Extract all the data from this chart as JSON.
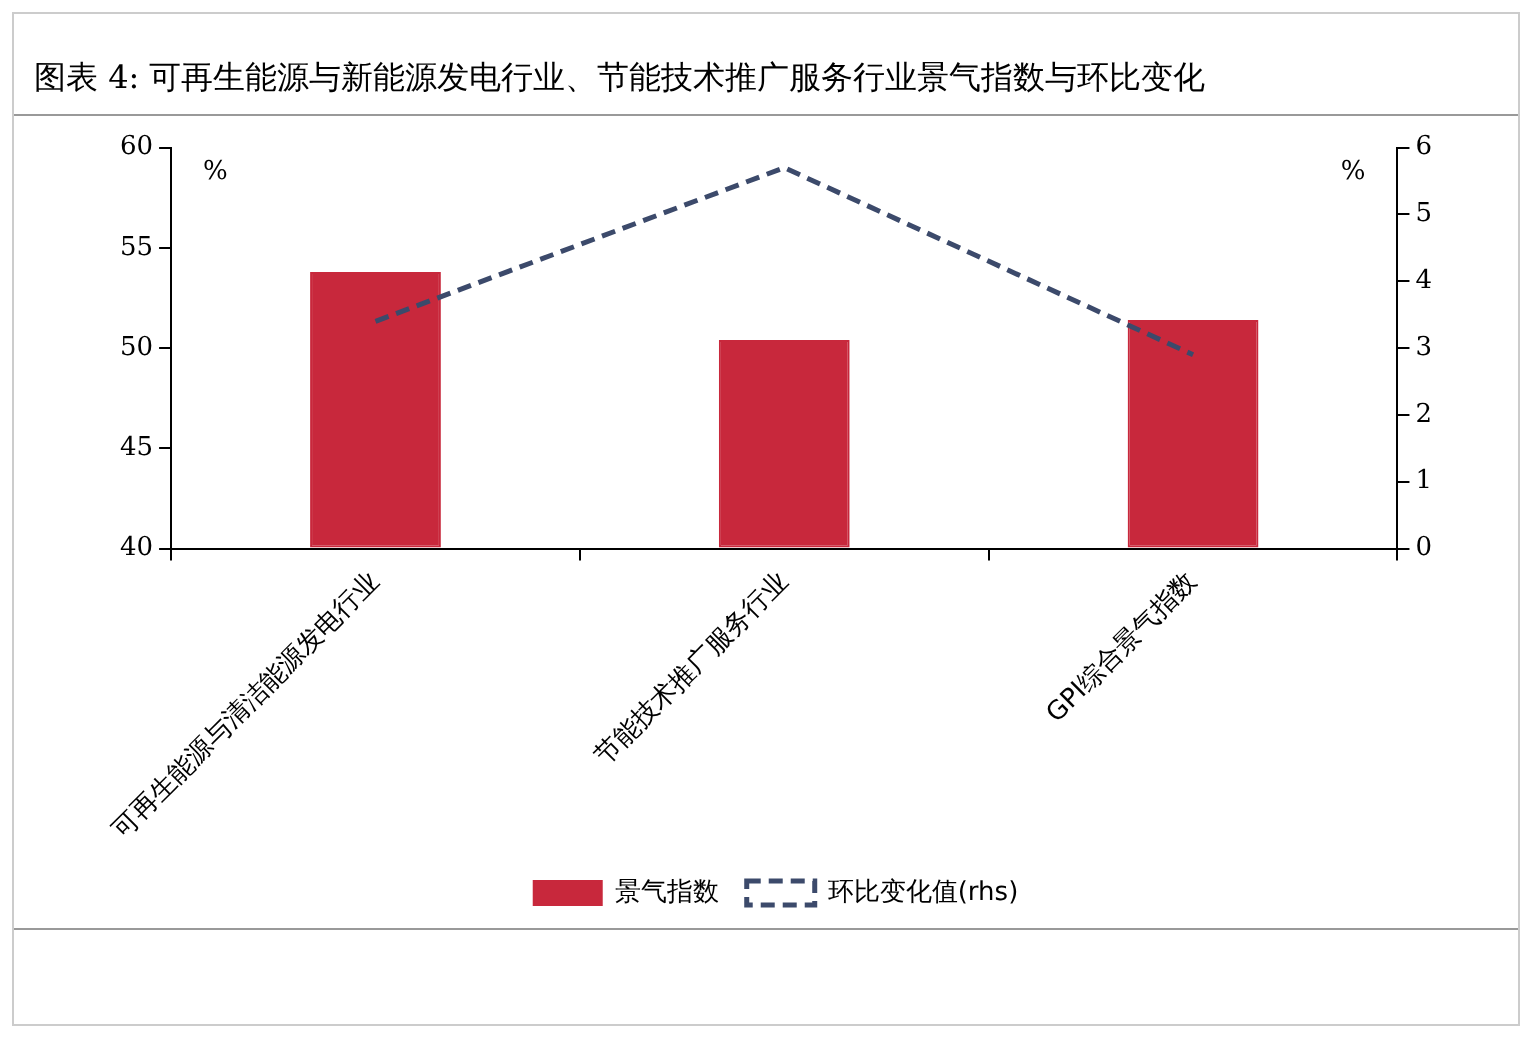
{
  "chart_data": {
    "type": "bar",
    "title": "图表 4: 可再生能源与新能源发电行业、节能技术推广服务行业景气指数与环比变化",
    "ylabel": "%",
    "y2label": "%",
    "categories": [
      "可再生能源与清洁能源发电行业",
      "节能技术推广服务行业",
      "GPI综合景气指数"
    ],
    "series": [
      {
        "name": "景气指数",
        "color": "#c8283c",
        "values": [
          53.8,
          50.4,
          51.4
        ]
      },
      {
        "name": "环比变化值(rhs)",
        "type": "line",
        "axis": "y2",
        "color": "#3c4a6b",
        "line_style": "dashed",
        "marker": "none",
        "values": [
          3.4,
          5.7,
          2.9
        ]
      }
    ],
    "ylim": [
      40,
      60
    ],
    "yticks": [
      40,
      45,
      50,
      55,
      60
    ],
    "y2lim": [
      0,
      6
    ],
    "y2ticks": [
      0,
      1,
      2,
      3,
      4,
      5,
      6
    ],
    "grid": false,
    "legend": "bottom"
  }
}
